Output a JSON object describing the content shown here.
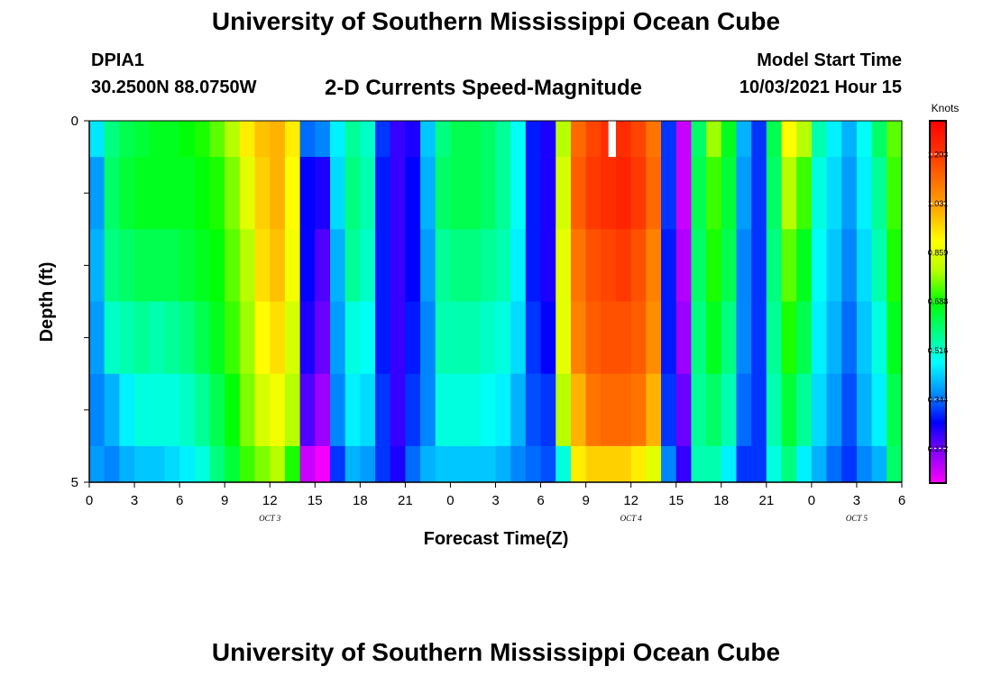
{
  "header": {
    "title": "University of Southern Mississippi Ocean Cube",
    "station_id": "DPIA1",
    "station_coords": "30.2500N  88.0750W",
    "chart_title": "2-D Currents Speed-Magnitude",
    "model_label": "Model Start Time",
    "model_time": "10/03/2021 Hour 15"
  },
  "footer": {
    "title": "University of Southern Mississippi Ocean Cube"
  },
  "chart_data": {
    "type": "heatmap",
    "xlabel": "Forecast Time(Z)",
    "ylabel": "Depth (ft)",
    "x_tick_labels": [
      "0",
      "3",
      "6",
      "9",
      "12",
      "15",
      "18",
      "21",
      "0",
      "3",
      "6",
      "9",
      "12",
      "15",
      "18",
      "21",
      "0",
      "3",
      "6"
    ],
    "date_labels": [
      {
        "label": "OCT 3",
        "hour": 12
      },
      {
        "label": "OCT 4",
        "hour": 36
      },
      {
        "label": "OCT 5",
        "hour": 51
      }
    ],
    "xlim_hours": [
      0,
      54
    ],
    "y_tick_labels": [
      "0",
      "5"
    ],
    "ylim_ft": [
      0,
      5
    ],
    "depth_bins_ft": [
      0,
      0.5,
      1.5,
      2.5,
      3.5,
      4.5,
      5
    ],
    "units": "Knots",
    "colorbar_ticks": [
      0.172,
      0.344,
      0.516,
      0.688,
      0.859,
      1.031,
      1.203
    ],
    "colorbar_tick_labels": [
      "0.172",
      "0.344",
      "0.516",
      "0.688",
      "0.859",
      "1.031",
      "1.203"
    ],
    "colorbar_range": [
      0.05,
      1.32
    ],
    "colorbar_colors": [
      "#ff00ff",
      "#8a00ff",
      "#0000ff",
      "#0090ff",
      "#00ffff",
      "#00ff80",
      "#00ff00",
      "#b0ff00",
      "#ffff00",
      "#ffb000",
      "#ff7000",
      "#ff3000",
      "#ff0000"
    ],
    "gap_hours": [
      34.5,
      35
    ],
    "gap_depth_ft": [
      0,
      0.5
    ],
    "columns": [
      {
        "hour": 0,
        "values": [
          0.45,
          0.38,
          0.4,
          0.38,
          0.36,
          0.38
        ]
      },
      {
        "hour": 1,
        "values": [
          0.58,
          0.6,
          0.58,
          0.52,
          0.4,
          0.36
        ]
      },
      {
        "hour": 2,
        "values": [
          0.62,
          0.64,
          0.6,
          0.54,
          0.46,
          0.4
        ]
      },
      {
        "hour": 3,
        "values": [
          0.64,
          0.66,
          0.62,
          0.56,
          0.5,
          0.42
        ]
      },
      {
        "hour": 4,
        "values": [
          0.66,
          0.66,
          0.62,
          0.54,
          0.5,
          0.42
        ]
      },
      {
        "hour": 5,
        "values": [
          0.66,
          0.66,
          0.62,
          0.56,
          0.5,
          0.44
        ]
      },
      {
        "hour": 6,
        "values": [
          0.68,
          0.66,
          0.64,
          0.58,
          0.52,
          0.46
        ]
      },
      {
        "hour": 7,
        "values": [
          0.7,
          0.68,
          0.66,
          0.62,
          0.56,
          0.5
        ]
      },
      {
        "hour": 8,
        "values": [
          0.74,
          0.7,
          0.68,
          0.66,
          0.62,
          0.58
        ]
      },
      {
        "hour": 9,
        "values": [
          0.8,
          0.76,
          0.74,
          0.72,
          0.68,
          0.64
        ]
      },
      {
        "hour": 10,
        "values": [
          0.92,
          0.86,
          0.8,
          0.78,
          0.76,
          0.72
        ]
      },
      {
        "hour": 11,
        "values": [
          0.98,
          0.96,
          0.94,
          0.9,
          0.84,
          0.76
        ]
      },
      {
        "hour": 12,
        "values": [
          1.0,
          1.0,
          0.98,
          0.94,
          0.88,
          0.8
        ]
      },
      {
        "hour": 13,
        "values": [
          0.92,
          0.9,
          0.88,
          0.84,
          0.8,
          0.7
        ]
      },
      {
        "hour": 14,
        "values": [
          0.34,
          0.26,
          0.26,
          0.24,
          0.2,
          0.1
        ]
      },
      {
        "hour": 15,
        "values": [
          0.36,
          0.24,
          0.2,
          0.18,
          0.14,
          0.06
        ]
      },
      {
        "hour": 16,
        "values": [
          0.46,
          0.44,
          0.4,
          0.38,
          0.36,
          0.3
        ]
      },
      {
        "hour": 17,
        "values": [
          0.56,
          0.58,
          0.56,
          0.5,
          0.46,
          0.4
        ]
      },
      {
        "hour": 18,
        "values": [
          0.52,
          0.54,
          0.52,
          0.48,
          0.44,
          0.38
        ]
      },
      {
        "hour": 19,
        "values": [
          0.3,
          0.28,
          0.28,
          0.28,
          0.3,
          0.3
        ]
      },
      {
        "hour": 20,
        "values": [
          0.22,
          0.22,
          0.22,
          0.22,
          0.22,
          0.24
        ]
      },
      {
        "hour": 21,
        "values": [
          0.24,
          0.26,
          0.26,
          0.28,
          0.3,
          0.34
        ]
      },
      {
        "hour": 22,
        "values": [
          0.42,
          0.4,
          0.38,
          0.36,
          0.36,
          0.4
        ]
      },
      {
        "hour": 23,
        "values": [
          0.58,
          0.6,
          0.56,
          0.54,
          0.5,
          0.42
        ]
      },
      {
        "hour": 24,
        "values": [
          0.62,
          0.62,
          0.58,
          0.54,
          0.5,
          0.42
        ]
      },
      {
        "hour": 25,
        "values": [
          0.62,
          0.62,
          0.58,
          0.54,
          0.5,
          0.42
        ]
      },
      {
        "hour": 26,
        "values": [
          0.6,
          0.6,
          0.56,
          0.52,
          0.48,
          0.42
        ]
      },
      {
        "hour": 27,
        "values": [
          0.56,
          0.56,
          0.54,
          0.5,
          0.46,
          0.4
        ]
      },
      {
        "hour": 28,
        "values": [
          0.48,
          0.48,
          0.46,
          0.44,
          0.4,
          0.36
        ]
      },
      {
        "hour": 29,
        "values": [
          0.28,
          0.28,
          0.28,
          0.3,
          0.32,
          0.34
        ]
      },
      {
        "hour": 30,
        "values": [
          0.24,
          0.24,
          0.24,
          0.26,
          0.3,
          0.32
        ]
      },
      {
        "hour": 31,
        "values": [
          0.8,
          0.84,
          0.86,
          0.86,
          0.8,
          0.5
        ]
      },
      {
        "hour": 32,
        "values": [
          1.12,
          1.14,
          1.1,
          1.08,
          1.0,
          0.92
        ]
      },
      {
        "hour": 33,
        "values": [
          1.18,
          1.2,
          1.16,
          1.14,
          1.1,
          0.96
        ]
      },
      {
        "hour": 34,
        "values": [
          1.22,
          1.22,
          1.18,
          1.16,
          1.12,
          0.96
        ]
      },
      {
        "hour": 35,
        "values": [
          1.22,
          1.24,
          1.2,
          1.16,
          1.12,
          0.96
        ]
      },
      {
        "hour": 36,
        "values": [
          1.18,
          1.2,
          1.16,
          1.14,
          1.1,
          0.92
        ]
      },
      {
        "hour": 37,
        "values": [
          1.1,
          1.12,
          1.08,
          1.06,
          1.0,
          0.86
        ]
      },
      {
        "hour": 38,
        "values": [
          0.3,
          0.3,
          0.28,
          0.28,
          0.3,
          0.36
        ]
      },
      {
        "hour": 39,
        "values": [
          0.1,
          0.1,
          0.12,
          0.14,
          0.18,
          0.22
        ]
      },
      {
        "hour": 40,
        "values": [
          0.6,
          0.62,
          0.6,
          0.58,
          0.56,
          0.54
        ]
      },
      {
        "hour": 41,
        "values": [
          0.78,
          0.72,
          0.7,
          0.66,
          0.6,
          0.54
        ]
      },
      {
        "hour": 42,
        "values": [
          0.66,
          0.64,
          0.62,
          0.58,
          0.54,
          0.46
        ]
      },
      {
        "hour": 43,
        "values": [
          0.4,
          0.38,
          0.36,
          0.36,
          0.34,
          0.3
        ]
      },
      {
        "hour": 44,
        "values": [
          0.3,
          0.3,
          0.3,
          0.3,
          0.3,
          0.3
        ]
      },
      {
        "hour": 45,
        "values": [
          0.62,
          0.6,
          0.58,
          0.56,
          0.54,
          0.5
        ]
      },
      {
        "hour": 46,
        "values": [
          0.9,
          0.8,
          0.74,
          0.7,
          0.64,
          0.58
        ]
      },
      {
        "hour": 47,
        "values": [
          0.8,
          0.72,
          0.66,
          0.62,
          0.56,
          0.46
        ]
      },
      {
        "hour": 48,
        "values": [
          0.54,
          0.5,
          0.48,
          0.46,
          0.44,
          0.4
        ]
      },
      {
        "hour": 49,
        "values": [
          0.46,
          0.44,
          0.42,
          0.4,
          0.38,
          0.34
        ]
      },
      {
        "hour": 50,
        "values": [
          0.4,
          0.38,
          0.36,
          0.34,
          0.32,
          0.3
        ]
      },
      {
        "hour": 51,
        "values": [
          0.48,
          0.46,
          0.44,
          0.42,
          0.4,
          0.36
        ]
      },
      {
        "hour": 52,
        "values": [
          0.6,
          0.56,
          0.54,
          0.5,
          0.46,
          0.4
        ]
      },
      {
        "hour": 53,
        "values": [
          0.74,
          0.72,
          0.7,
          0.66,
          0.62,
          0.6
        ]
      }
    ]
  }
}
